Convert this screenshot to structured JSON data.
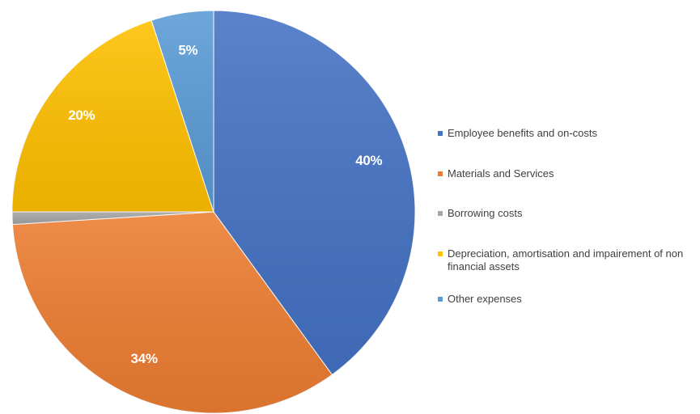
{
  "chart_data": {
    "type": "pie",
    "slices": [
      {
        "label": "Employee benefits and on-costs",
        "value": 40,
        "display": "40%",
        "color": "#4472C4"
      },
      {
        "label": "Materials and Services",
        "value": 34,
        "display": "34%",
        "color": "#ED7D31"
      },
      {
        "label": "Borrowing costs",
        "value": 1,
        "display": "",
        "color": "#A5A5A5"
      },
      {
        "label": "Depreciation, amortisation and impairement of non financial assets",
        "value": 20,
        "display": "20%",
        "color": "#FFC000"
      },
      {
        "label": "Other expenses",
        "value": 5,
        "display": "5%",
        "color": "#5B9BD5"
      }
    ],
    "start_angle_deg": 0,
    "direction": "clockwise",
    "legend_position": "right"
  }
}
